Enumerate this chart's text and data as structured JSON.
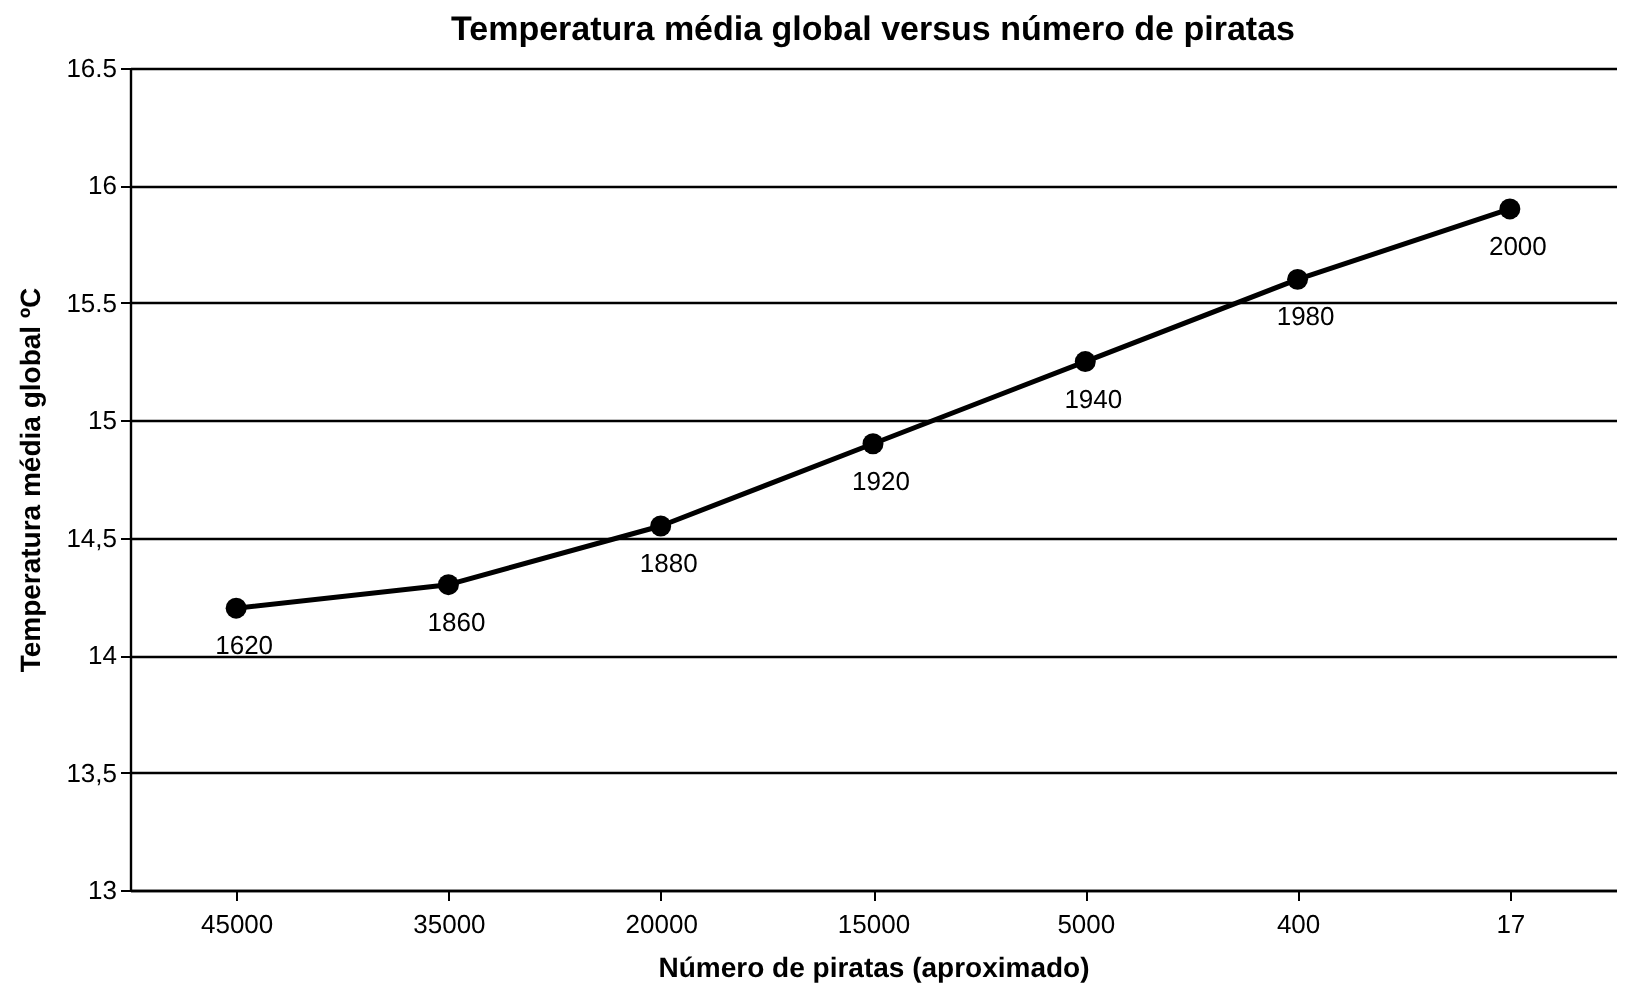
{
  "chart_data": {
    "type": "line",
    "title": "Temperatura média global versus número de piratas",
    "xlabel": "Número de piratas (aproximado)",
    "ylabel": "Temperatura média global ºC",
    "categories": [
      "45000",
      "35000",
      "20000",
      "15000",
      "5000",
      "400",
      "17"
    ],
    "series": [
      {
        "color": "#000000",
        "values": [
          14.2,
          14.3,
          14.55,
          14.9,
          15.25,
          15.6,
          15.9
        ]
      }
    ],
    "ylim": [
      13,
      16.5
    ],
    "yticks": [
      13,
      {
        "value": 13.5,
        "label": "13,5"
      },
      14,
      {
        "value": 14.5,
        "label": "14,5"
      },
      15,
      15.5,
      16,
      16.5
    ],
    "annotations": [
      {
        "text": "1620",
        "x": "45000",
        "y": 14.2
      },
      {
        "text": "1860",
        "x": "35000",
        "y": 14.3
      },
      {
        "text": "1880",
        "x": "20000",
        "y": 14.55
      },
      {
        "text": "1920",
        "x": "15000",
        "y": 14.9
      },
      {
        "text": "1940",
        "x": "5000",
        "y": 15.25
      },
      {
        "text": "1980",
        "x": "400",
        "y": 15.6
      },
      {
        "text": "2000",
        "x": "17",
        "y": 15.9
      }
    ],
    "grid": "y",
    "marker": "circle",
    "line_style": "solid"
  }
}
